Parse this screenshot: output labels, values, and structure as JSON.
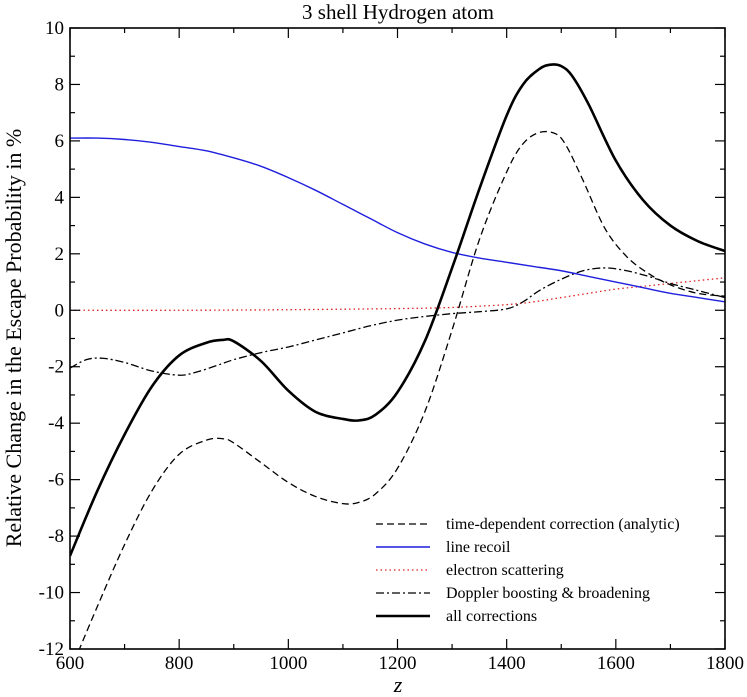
{
  "chart_data": {
    "type": "line",
    "title": "3 shell Hydrogen atom",
    "xlabel": "z",
    "ylabel": "Relative Change in the Escape Probability in %",
    "xlim": [
      600,
      1800
    ],
    "ylim": [
      -12,
      10
    ],
    "x_ticks": [
      "600",
      "800",
      "1000",
      "1200",
      "1400",
      "1600",
      "1800"
    ],
    "y_ticks": [
      "-12",
      "-10",
      "-8",
      "-6",
      "-4",
      "-2",
      "0",
      "2",
      "4",
      "6",
      "8",
      "10"
    ],
    "grid": false,
    "legend_position": "bottom-right",
    "series": [
      {
        "name": "time-dependent correction (analytic)",
        "color": "#000000",
        "style": "dashed",
        "x": [
          600,
          650,
          700,
          750,
          800,
          850,
          880,
          900,
          950,
          1000,
          1050,
          1100,
          1130,
          1160,
          1200,
          1250,
          1300,
          1350,
          1400,
          1430,
          1460,
          1490,
          1510,
          1540,
          1580,
          1620,
          1660,
          1700,
          1750,
          1800
        ],
        "y": [
          -12.8,
          -10.5,
          -8.3,
          -6.4,
          -5.1,
          -4.6,
          -4.55,
          -4.7,
          -5.4,
          -6.1,
          -6.6,
          -6.85,
          -6.8,
          -6.5,
          -5.6,
          -3.6,
          -0.7,
          2.5,
          4.9,
          5.9,
          6.3,
          6.25,
          5.8,
          4.6,
          2.9,
          1.9,
          1.3,
          0.9,
          0.6,
          0.5
        ]
      },
      {
        "name": "line recoil",
        "color": "#1f1fdd",
        "style": "solid",
        "x": [
          600,
          650,
          700,
          750,
          800,
          850,
          900,
          950,
          1000,
          1050,
          1100,
          1150,
          1200,
          1250,
          1300,
          1350,
          1400,
          1450,
          1500,
          1550,
          1600,
          1650,
          1700,
          1750,
          1800
        ],
        "y": [
          6.1,
          6.1,
          6.05,
          5.95,
          5.8,
          5.65,
          5.4,
          5.1,
          4.7,
          4.25,
          3.75,
          3.25,
          2.75,
          2.35,
          2.05,
          1.85,
          1.7,
          1.55,
          1.4,
          1.2,
          1.0,
          0.8,
          0.6,
          0.45,
          0.3
        ]
      },
      {
        "name": "electron scattering",
        "color": "#e02020",
        "style": "dotted",
        "x": [
          600,
          800,
          1000,
          1200,
          1300,
          1400,
          1450,
          1500,
          1550,
          1600,
          1650,
          1700,
          1750,
          1800
        ],
        "y": [
          0.0,
          0.0,
          0.02,
          0.06,
          0.1,
          0.2,
          0.3,
          0.45,
          0.6,
          0.75,
          0.85,
          0.95,
          1.05,
          1.15
        ]
      },
      {
        "name": "Doppler boosting & broadening",
        "color": "#000000",
        "style": "dashdot",
        "x": [
          600,
          630,
          660,
          700,
          750,
          800,
          830,
          870,
          900,
          950,
          1000,
          1050,
          1100,
          1150,
          1200,
          1250,
          1300,
          1350,
          1400,
          1430,
          1460,
          1500,
          1540,
          1580,
          1620,
          1660,
          1700,
          1750,
          1800
        ],
        "y": [
          -2.05,
          -1.75,
          -1.7,
          -1.85,
          -2.15,
          -2.3,
          -2.2,
          -1.95,
          -1.75,
          -1.5,
          -1.3,
          -1.05,
          -0.8,
          -0.55,
          -0.35,
          -0.22,
          -0.12,
          -0.05,
          0.05,
          0.3,
          0.7,
          1.1,
          1.4,
          1.5,
          1.4,
          1.2,
          0.95,
          0.7,
          0.45
        ]
      },
      {
        "name": "all corrections",
        "color": "#000000",
        "style": "thick",
        "x": [
          600,
          650,
          700,
          750,
          800,
          850,
          880,
          900,
          950,
          1000,
          1050,
          1100,
          1130,
          1160,
          1200,
          1250,
          1300,
          1350,
          1400,
          1430,
          1460,
          1480,
          1500,
          1520,
          1550,
          1600,
          1650,
          1700,
          1750,
          1800
        ],
        "y": [
          -8.7,
          -6.4,
          -4.4,
          -2.7,
          -1.6,
          -1.15,
          -1.05,
          -1.1,
          -1.8,
          -2.85,
          -3.6,
          -3.85,
          -3.9,
          -3.7,
          -2.9,
          -1.1,
          1.5,
          4.3,
          6.9,
          8.0,
          8.55,
          8.7,
          8.65,
          8.3,
          7.3,
          5.3,
          3.9,
          3.0,
          2.45,
          2.1
        ]
      }
    ]
  }
}
